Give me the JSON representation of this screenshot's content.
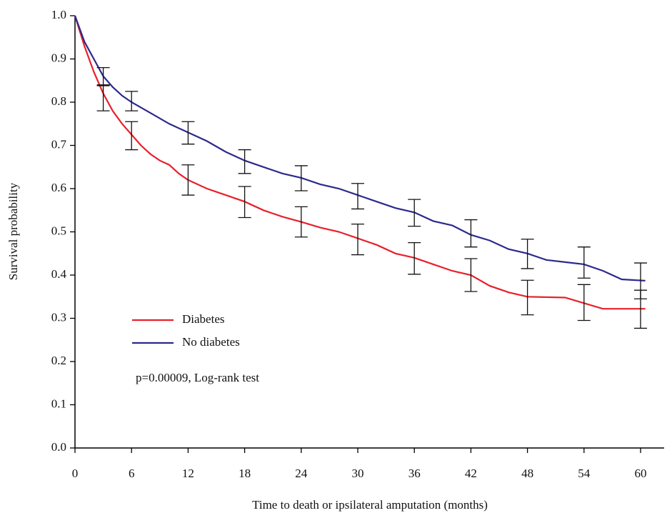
{
  "chart_data": {
    "type": "line",
    "x_label": "Time to death or ipsilateral amputation (months)",
    "y_label": "Survival probability",
    "annotation": "p=0.00009, Log-rank test",
    "legend": "left",
    "xlim": [
      0,
      62.5
    ],
    "ylim": [
      0,
      1
    ],
    "xticks": [
      0,
      6,
      12,
      18,
      24,
      30,
      36,
      42,
      48,
      54,
      60
    ],
    "yticks": [
      {
        "value": 0,
        "label": "0.0"
      },
      0.1,
      0.2,
      0.3,
      0.4,
      0.5,
      0.6,
      0.7,
      0.8,
      0.9,
      {
        "value": 1,
        "label": "1.0"
      }
    ],
    "series": [
      {
        "name": "Diabetes",
        "color": "#e8202a",
        "x": [
          0,
          1,
          2,
          3,
          4,
          5,
          6,
          7,
          8,
          9,
          10,
          11,
          12,
          14,
          16,
          18,
          20,
          22,
          24,
          26,
          28,
          30,
          32,
          34,
          36,
          38,
          40,
          42,
          44,
          46,
          48,
          52,
          54,
          56,
          60.5
        ],
        "values": [
          1.0,
          0.93,
          0.87,
          0.82,
          0.78,
          0.75,
          0.725,
          0.7,
          0.68,
          0.665,
          0.655,
          0.635,
          0.62,
          0.6,
          0.585,
          0.57,
          0.55,
          0.535,
          0.523,
          0.51,
          0.5,
          0.485,
          0.47,
          0.45,
          0.44,
          0.425,
          0.41,
          0.4,
          0.375,
          0.36,
          0.35,
          0.348,
          0.335,
          0.322,
          0.322
        ],
        "error_x": [
          3,
          6,
          12,
          18,
          24,
          30,
          36,
          42,
          48,
          54,
          60
        ],
        "error_low": [
          0.78,
          0.69,
          0.585,
          0.533,
          0.488,
          0.447,
          0.402,
          0.362,
          0.308,
          0.295,
          0.277
        ],
        "error_high": [
          0.84,
          0.755,
          0.655,
          0.605,
          0.558,
          0.518,
          0.475,
          0.438,
          0.388,
          0.378,
          0.365
        ]
      },
      {
        "name": "No diabetes",
        "color": "#2b2a8c",
        "x": [
          0,
          1,
          2,
          3,
          4,
          5,
          6,
          8,
          10,
          12,
          14,
          16,
          18,
          20,
          22,
          24,
          26,
          28,
          30,
          32,
          34,
          36,
          38,
          40,
          42,
          44,
          46,
          48,
          50,
          52,
          54,
          56,
          58,
          60.5
        ],
        "values": [
          1.0,
          0.94,
          0.9,
          0.86,
          0.835,
          0.815,
          0.8,
          0.775,
          0.75,
          0.73,
          0.71,
          0.685,
          0.665,
          0.65,
          0.635,
          0.625,
          0.61,
          0.6,
          0.585,
          0.57,
          0.555,
          0.545,
          0.525,
          0.515,
          0.493,
          0.48,
          0.46,
          0.45,
          0.435,
          0.43,
          0.425,
          0.41,
          0.39,
          0.387
        ],
        "error_x": [
          3,
          6,
          12,
          18,
          24,
          30,
          36,
          42,
          48,
          54,
          60
        ],
        "error_low": [
          0.838,
          0.78,
          0.703,
          0.635,
          0.595,
          0.553,
          0.513,
          0.465,
          0.415,
          0.393,
          0.345
        ],
        "error_high": [
          0.88,
          0.825,
          0.755,
          0.69,
          0.653,
          0.612,
          0.575,
          0.528,
          0.483,
          0.465,
          0.428
        ]
      }
    ]
  }
}
